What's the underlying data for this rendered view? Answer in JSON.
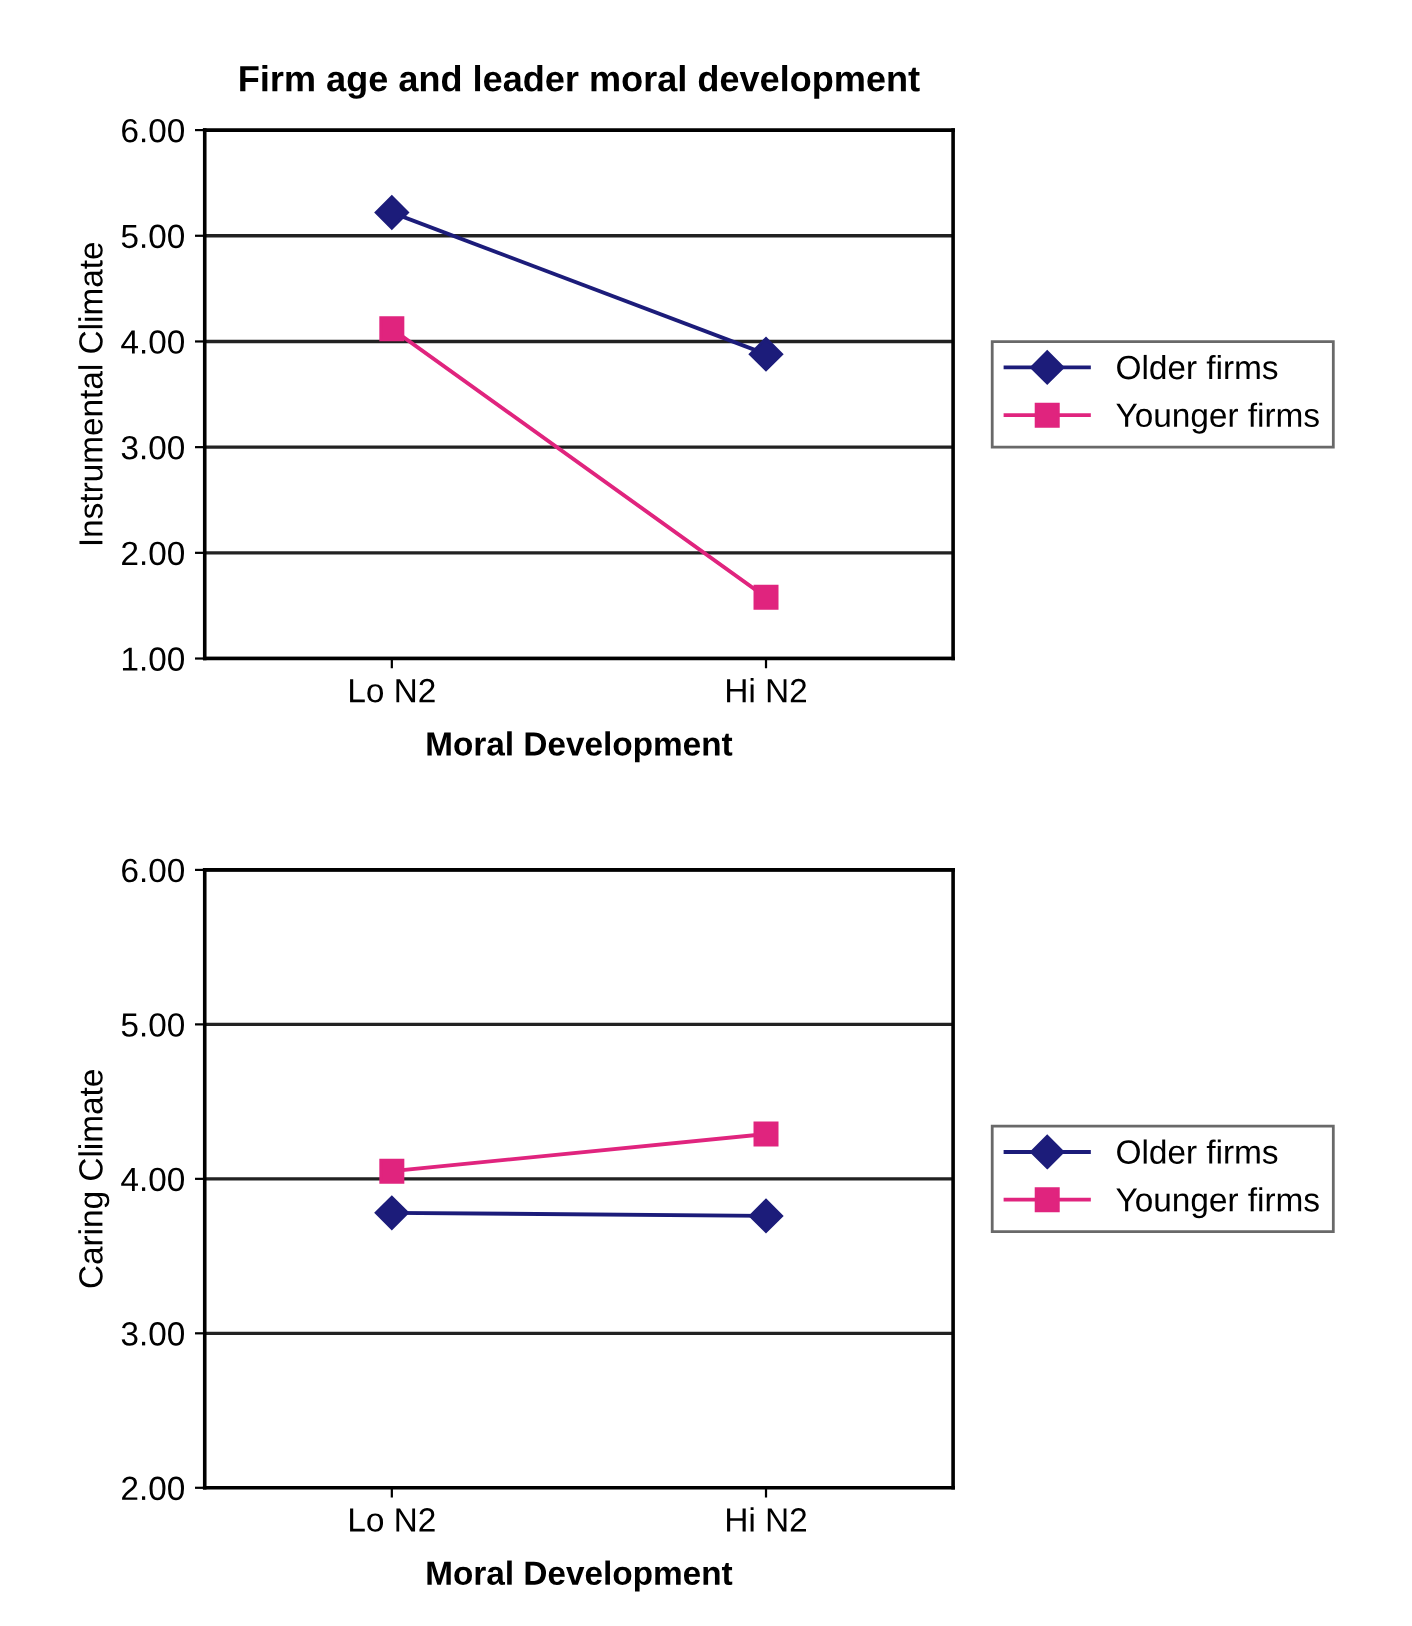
{
  "chart_data": [
    {
      "type": "line",
      "title": "Firm age and leader moral development",
      "xlabel": "Moral Development",
      "ylabel": "Instrumental Climate",
      "categories": [
        "Lo N2",
        "Hi N2"
      ],
      "series": [
        {
          "name": "Older firms",
          "color": "#1c1c7a",
          "marker": "diamond",
          "values": [
            5.22,
            3.88
          ]
        },
        {
          "name": "Younger firms",
          "color": "#e0247e",
          "marker": "square",
          "values": [
            4.12,
            1.58
          ]
        }
      ],
      "ylim": [
        1,
        6
      ],
      "yticks": [
        {
          "value": 1,
          "label": "1.00"
        },
        {
          "value": 2,
          "label": "2.00"
        },
        {
          "value": 3,
          "label": "3.00"
        },
        {
          "value": 4,
          "label": "4.00"
        },
        {
          "value": 5,
          "label": "5.00"
        },
        {
          "value": 6,
          "label": "6.00"
        }
      ],
      "grid": "y",
      "legend": "right"
    },
    {
      "type": "line",
      "xlabel": "Moral Development",
      "ylabel": "Caring Climate",
      "categories": [
        "Lo N2",
        "Hi N2"
      ],
      "series": [
        {
          "name": "Older firms",
          "color": "#1c1c7a",
          "marker": "diamond",
          "values": [
            3.78,
            3.76
          ]
        },
        {
          "name": "Younger firms",
          "color": "#e0247e",
          "marker": "square",
          "values": [
            4.05,
            4.29
          ]
        }
      ],
      "ylim": [
        2,
        6
      ],
      "yticks": [
        {
          "value": 2,
          "label": "2.00"
        },
        {
          "value": 3,
          "label": "3.00"
        },
        {
          "value": 4,
          "label": "4.00"
        },
        {
          "value": 5,
          "label": "5.00"
        },
        {
          "value": 6,
          "label": "6.00"
        }
      ],
      "grid": "y",
      "legend": "right"
    }
  ]
}
